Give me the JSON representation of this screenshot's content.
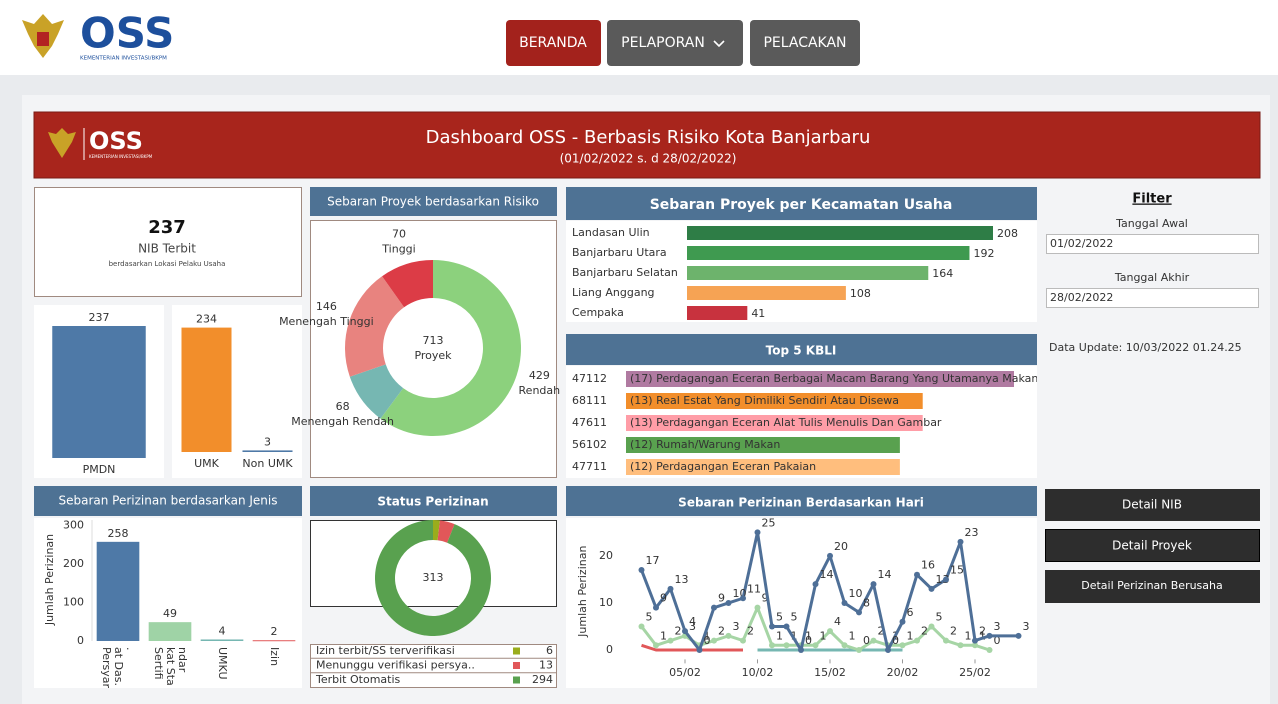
{
  "nav": {
    "logo": "OSS",
    "logo_sub": "KEMENTERIAN INVESTASI/BKPM",
    "buttons": [
      "BERANDA",
      "PELAPORAN",
      "PELACAKAN"
    ]
  },
  "header": {
    "title": "Dashboard OSS - Berbasis Risiko Kota Banjarbaru",
    "subtitle": "(01/02/2022 s. d 28/02/2022)"
  },
  "kpi": {
    "value": 237,
    "label": "NIB Terbit",
    "sublabel": "berdasarkan Lokasi Pelaku Usaha"
  },
  "filter": {
    "title": "Filter",
    "start_label": "Tanggal Awal",
    "start": "01/02/2022",
    "end_label": "Tanggal Akhir",
    "end": "28/02/2022",
    "update": "Data Update: 10/03/2022 01.24.25"
  },
  "actions": [
    "Detail NIB",
    "Detail Proyek",
    "Detail Perizinan Berusaha"
  ],
  "chart_data": [
    {
      "type": "bar",
      "categories": [
        "PMDN"
      ],
      "values": [
        237
      ],
      "colors": [
        "#4e79a7"
      ]
    },
    {
      "type": "bar",
      "categories": [
        "UMK",
        "Non UMK"
      ],
      "values": [
        234,
        3
      ],
      "colors": [
        "#f28e2b",
        "#4e79a7"
      ]
    },
    {
      "type": "donut",
      "title": "Sebaran Proyek berdasarkan Risiko",
      "categories": [
        "Rendah",
        "Menengah Rendah",
        "Menengah Tinggi",
        "Tinggi"
      ],
      "values": [
        429,
        68,
        146,
        70
      ],
      "colors": [
        "#8cd17d",
        "#76b7b2",
        "#e8837f",
        "#dc3c46"
      ],
      "center_value": 713,
      "center_label": "Proyek"
    },
    {
      "type": "hbar",
      "title": "Sebaran Proyek per Kecamatan Usaha",
      "categories": [
        "Landasan Ulin",
        "Banjarbaru Utara",
        "Banjarbaru Selatan",
        "Liang Anggang",
        "Cempaka"
      ],
      "values": [
        208,
        192,
        164,
        108,
        41
      ],
      "colors": [
        "#2e7d46",
        "#3f9a50",
        "#6db36c",
        "#f6a354",
        "#c8323e"
      ]
    },
    {
      "type": "hbar",
      "title": "Top 5 KBLI",
      "codes": [
        "47112",
        "68111",
        "47611",
        "56102",
        "47711"
      ],
      "categories": [
        "(17) Perdagangan Eceran Berbagai Macam Barang Yang Utamanya Makanan, M",
        "(13) Real Estat Yang Dimiliki Sendiri Atau Disewa",
        "(13) Perdagangan Eceran Alat Tulis Menulis Dan Gambar",
        "(12) Rumah/Warung Makan",
        "(12) Perdagangan Eceran Pakaian"
      ],
      "values": [
        17,
        13,
        13,
        12,
        12
      ],
      "colors": [
        "#b07aa1",
        "#f28e2b",
        "#ff9da7",
        "#59a14f",
        "#ffbe7d"
      ]
    },
    {
      "type": "bar",
      "title": "Sebaran Perizinan berdasarkan Jenis",
      "ylabel": "Jumlah Perizinan",
      "categories": [
        "Persyarat Das..",
        "Sertifikat Standar",
        "UMKU",
        "Izin"
      ],
      "values": [
        258,
        49,
        4,
        2
      ],
      "colors": [
        "#4e79a7",
        "#9fd3a6",
        "#76b7b2",
        "#e15759"
      ],
      "ylim": [
        0,
        320
      ],
      "yticks": [
        0,
        100,
        200,
        300
      ]
    },
    {
      "type": "donut",
      "title": "Status Perizinan",
      "categories": [
        "Izin terbit/SS terverifikasi",
        "Menunggu verifikasi persya..",
        "Terbit Otomatis"
      ],
      "values": [
        6,
        13,
        294
      ],
      "colors": [
        "#9aad1c",
        "#e15759",
        "#59a14f"
      ],
      "center_value": 313
    },
    {
      "type": "line",
      "title": "Sebaran Perizinan Berdasarkan Hari",
      "ylabel": "Jumlah Perizinan",
      "xlim": [
        0.5,
        29
      ],
      "xticks": [
        {
          "value": 5,
          "label": "05/02"
        },
        {
          "value": 10,
          "label": "10/02"
        },
        {
          "value": 15,
          "label": "15/02"
        },
        {
          "value": 20,
          "label": "20/02"
        },
        {
          "value": 25,
          "label": "25/02"
        }
      ],
      "ylim": [
        -2,
        27
      ],
      "yticks": [
        0,
        10,
        20
      ],
      "series": [
        {
          "color": "#e15759",
          "x": [
            2,
            3,
            4,
            5,
            6,
            7,
            8,
            9
          ],
          "values": [
            1,
            0,
            0,
            0,
            0,
            0,
            0,
            0
          ]
        },
        {
          "color": "#76b7b2",
          "x": [
            10,
            11,
            12,
            13,
            14,
            15,
            16,
            17,
            18,
            19,
            20
          ],
          "values": [
            0,
            0,
            0,
            0,
            0,
            0,
            0,
            0,
            0,
            0,
            0
          ]
        },
        {
          "color": "#a6d5a5",
          "show_labels": true,
          "x": [
            2,
            3,
            4,
            5,
            6,
            7,
            8,
            9,
            10,
            11,
            12,
            13,
            14,
            15,
            16,
            17,
            18,
            19,
            20,
            21,
            22,
            23,
            24,
            25,
            26
          ],
          "values": [
            5,
            1,
            2,
            3,
            1,
            2,
            3,
            2,
            9,
            1,
            1,
            1,
            1,
            4,
            1,
            0,
            2,
            1,
            1,
            2,
            5,
            2,
            1,
            1,
            0
          ]
        },
        {
          "color": "#4e6f97",
          "show_labels": true,
          "x": [
            2,
            3,
            4,
            5,
            6,
            7,
            8,
            9,
            10,
            11,
            12,
            13,
            14,
            15,
            16,
            17,
            18,
            19,
            20,
            21,
            22,
            23,
            24,
            25,
            26,
            28
          ],
          "values": [
            17,
            9,
            13,
            4,
            0,
            9,
            10,
            11,
            25,
            5,
            5,
            0,
            14,
            20,
            10,
            8,
            14,
            0,
            6,
            16,
            13,
            15,
            23,
            2,
            3,
            3
          ]
        }
      ]
    }
  ]
}
